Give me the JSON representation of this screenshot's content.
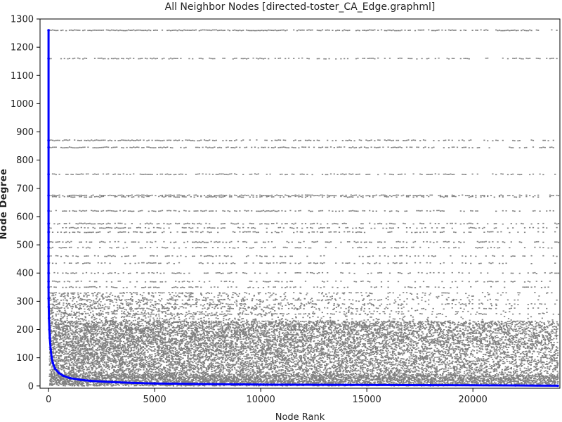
{
  "chart_data": {
    "type": "scatter",
    "title": "All Neighbor Nodes [directed-toster_CA_Edge.graphml]",
    "xlabel": "Node Rank",
    "ylabel": "Node Degree",
    "xlim": [
      -400,
      24100
    ],
    "ylim": [
      -8,
      1300
    ],
    "xticks": [
      0,
      5000,
      10000,
      15000,
      20000
    ],
    "yticks": [
      0,
      100,
      200,
      300,
      400,
      500,
      600,
      700,
      800,
      900,
      1000,
      1100,
      1200,
      1300
    ],
    "grid": false,
    "legend": "none",
    "series": [
      {
        "role": "neighbor-degree-points",
        "color": "#808080",
        "marker": "dot",
        "n_ranks": 24000,
        "dense_band_max_degree": 230,
        "dense_band_sparse_rank": 12000,
        "fringe_max_degree": 330,
        "horizontal_bands": [
          {
            "degree": 1260,
            "density_start": 0.95,
            "density_end": 0.6
          },
          {
            "degree": 1160,
            "density_start": 0.7,
            "density_end": 0.3
          },
          {
            "degree": 870,
            "density_start": 0.8,
            "density_end": 0.35
          },
          {
            "degree": 845,
            "density_start": 0.75,
            "density_end": 0.4
          },
          {
            "degree": 750,
            "density_start": 0.7,
            "density_end": 0.35
          },
          {
            "degree": 675,
            "density_start": 0.85,
            "density_end": 0.55
          },
          {
            "degree": 670,
            "density_start": 0.6,
            "density_end": 0.3
          },
          {
            "degree": 620,
            "density_start": 0.7,
            "density_end": 0.3
          },
          {
            "degree": 575,
            "density_start": 0.65,
            "density_end": 0.3
          },
          {
            "degree": 560,
            "density_start": 0.6,
            "density_end": 0.3
          },
          {
            "degree": 545,
            "density_start": 0.55,
            "density_end": 0.25
          },
          {
            "degree": 510,
            "density_start": 0.6,
            "density_end": 0.3
          },
          {
            "degree": 490,
            "density_start": 0.55,
            "density_end": 0.25
          },
          {
            "degree": 460,
            "density_start": 0.5,
            "density_end": 0.25
          },
          {
            "degree": 435,
            "density_start": 0.5,
            "density_end": 0.2
          },
          {
            "degree": 400,
            "density_start": 0.5,
            "density_end": 0.2
          },
          {
            "degree": 370,
            "density_start": 0.5,
            "density_end": 0.2
          },
          {
            "degree": 350,
            "density_start": 0.5,
            "density_end": 0.25
          },
          {
            "degree": 330,
            "density_start": 0.45,
            "density_end": 0.2
          },
          {
            "degree": 305,
            "density_start": 0.45,
            "density_end": 0.2
          },
          {
            "degree": 290,
            "density_start": 0.45,
            "density_end": 0.2
          },
          {
            "degree": 275,
            "density_start": 0.45,
            "density_end": 0.2
          },
          {
            "degree": 255,
            "density_start": 0.45,
            "density_end": 0.2
          }
        ]
      },
      {
        "role": "node-degree-curve",
        "color": "#0000ff",
        "points": [
          [
            0,
            1260
          ],
          [
            0,
            1160
          ],
          [
            0,
            870
          ],
          [
            0,
            845
          ],
          [
            0,
            750
          ],
          [
            0,
            675
          ],
          [
            0,
            620
          ],
          [
            0,
            575
          ],
          [
            0,
            545
          ],
          [
            0,
            510
          ],
          [
            0,
            490
          ],
          [
            0,
            460
          ],
          [
            0,
            435
          ],
          [
            0,
            400
          ],
          [
            0,
            370
          ],
          [
            0,
            350
          ],
          [
            5,
            310
          ],
          [
            10,
            280
          ],
          [
            20,
            240
          ],
          [
            40,
            200
          ],
          [
            60,
            170
          ],
          [
            100,
            130
          ],
          [
            150,
            100
          ],
          [
            200,
            82
          ],
          [
            300,
            62
          ],
          [
            500,
            45
          ],
          [
            700,
            36
          ],
          [
            1000,
            28
          ],
          [
            1500,
            22
          ],
          [
            2000,
            18
          ],
          [
            3000,
            14
          ],
          [
            4000,
            11
          ],
          [
            5000,
            9
          ],
          [
            7000,
            7
          ],
          [
            10000,
            5
          ],
          [
            14000,
            4
          ],
          [
            18000,
            3
          ],
          [
            22000,
            2
          ],
          [
            24000,
            1
          ]
        ]
      }
    ]
  }
}
